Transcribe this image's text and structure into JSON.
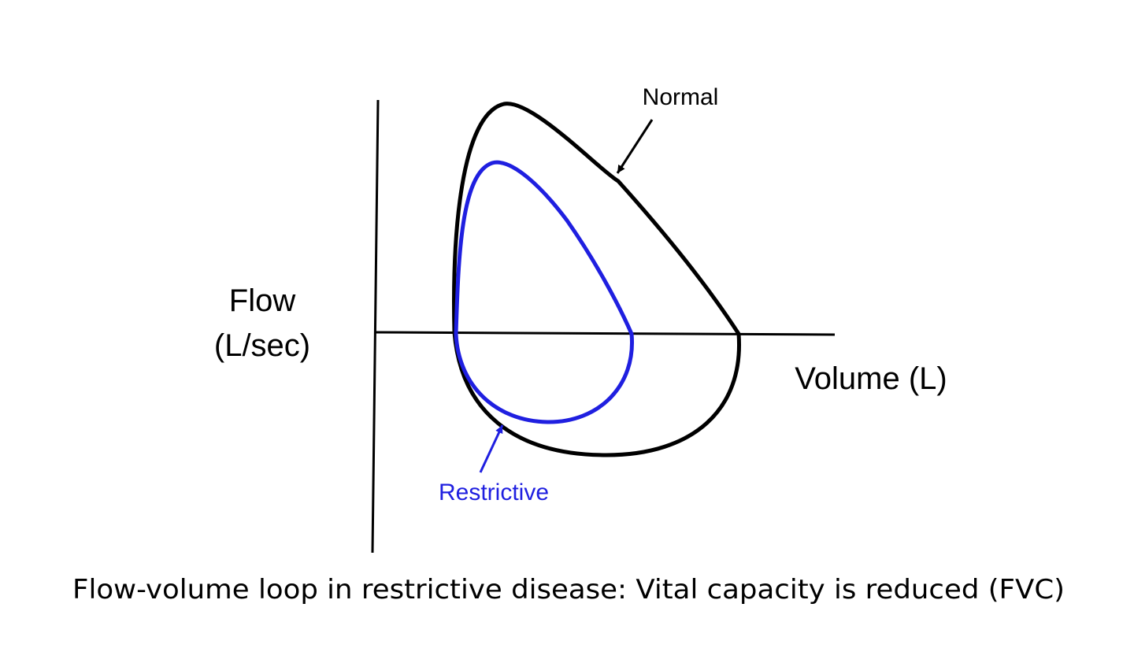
{
  "diagram": {
    "y_axis_label_line1": "Flow",
    "y_axis_label_line2": "(L/sec)",
    "x_axis_label": "Volume (L)",
    "curves": [
      {
        "name": "Normal",
        "color": "#000000"
      },
      {
        "name": "Restrictive",
        "color": "#1f1fe0"
      }
    ],
    "annotations": {
      "normal": "Normal",
      "restrictive": "Restrictive"
    },
    "caption": "Flow-volume loop in restrictive disease:  Vital capacity is reduced (FVC)"
  }
}
